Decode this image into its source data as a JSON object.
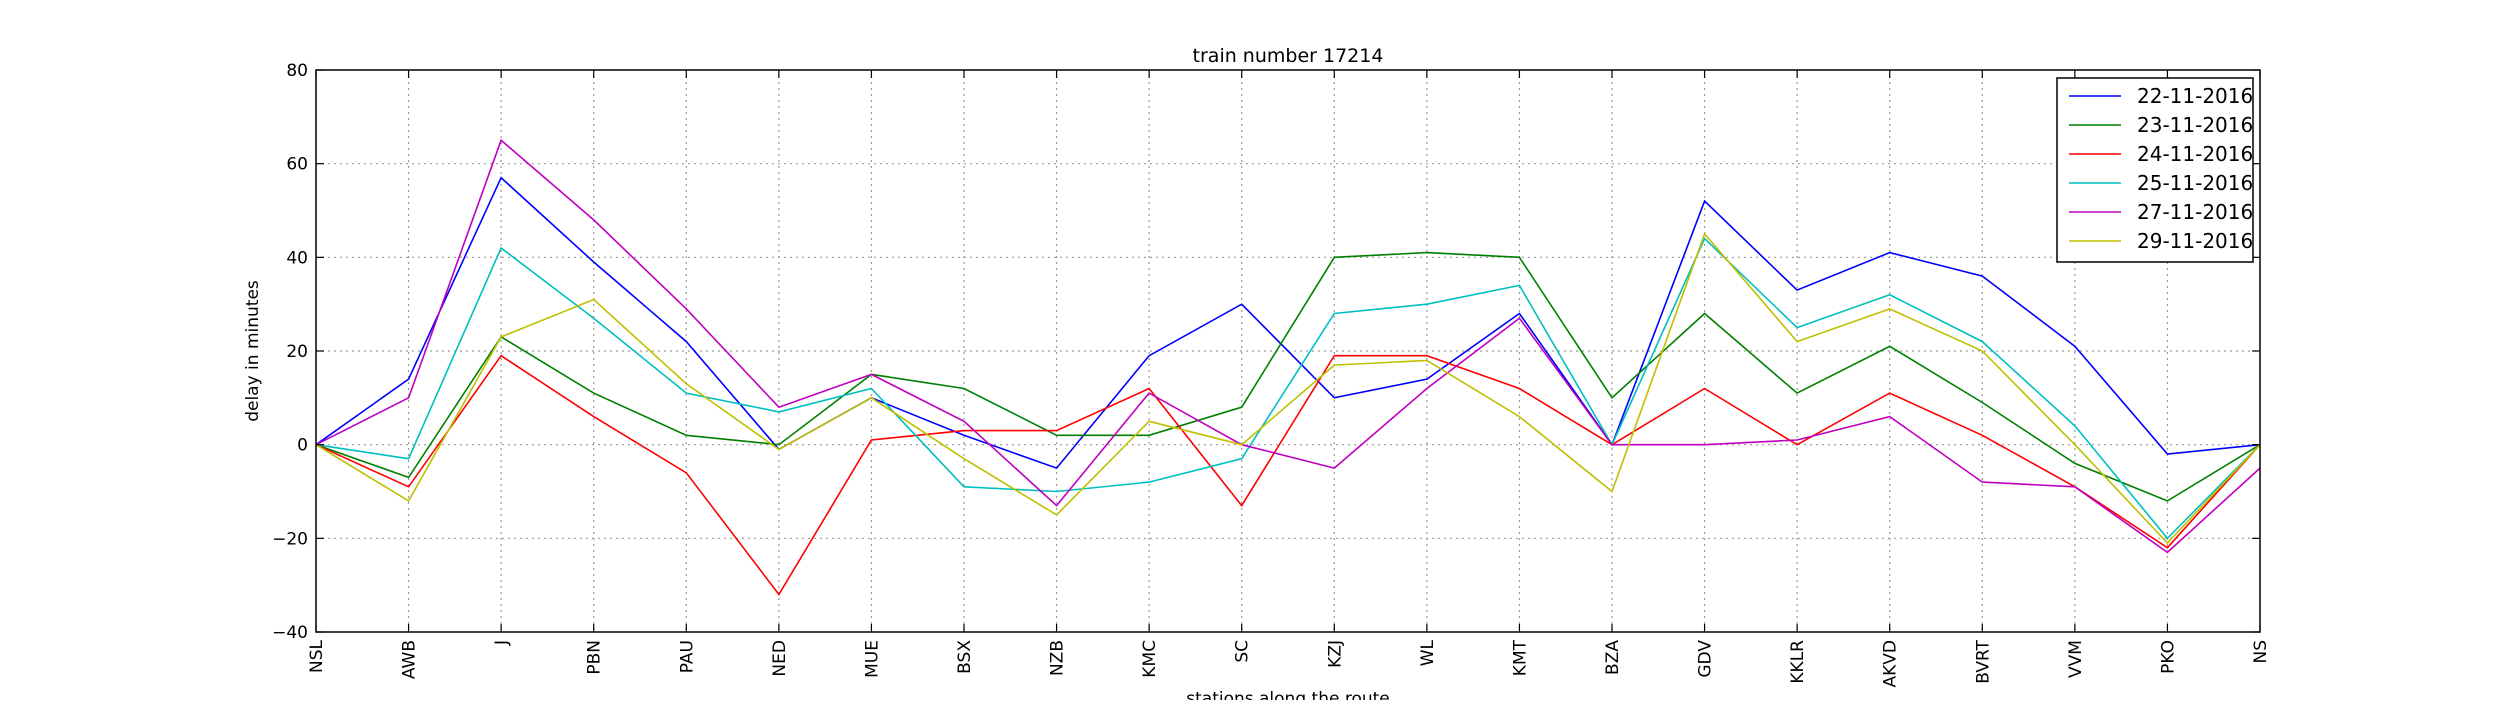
{
  "chart_data": {
    "type": "line",
    "title": "train number 17214",
    "xlabel": "stations along the route",
    "ylabel": "delay in minutes",
    "ylim": [
      -40,
      80
    ],
    "yticks": [
      -40,
      -20,
      0,
      20,
      40,
      60,
      80
    ],
    "ytick_labels": [
      "−40",
      "−20",
      "0",
      "20",
      "40",
      "60",
      "80"
    ],
    "grid": true,
    "legend_position": "top-right",
    "categories": [
      "NSL",
      "AWB",
      "J",
      "PBN",
      "PAU",
      "NED",
      "MUE",
      "BSX",
      "NZB",
      "KMC",
      "SC",
      "KZJ",
      "WL",
      "KMT",
      "BZA",
      "GDV",
      "KKLR",
      "AKVD",
      "BVRT",
      "VVM",
      "PKO",
      "NS"
    ],
    "series": [
      {
        "name": "22-11-2016",
        "color": "#0000ff",
        "values": [
          0,
          14,
          57,
          39,
          22,
          -1,
          10,
          2,
          -5,
          19,
          30,
          10,
          14,
          28,
          0,
          52,
          33,
          41,
          36,
          21,
          -2,
          0
        ]
      },
      {
        "name": "23-11-2016",
        "color": "#008000",
        "values": [
          0,
          -7,
          23,
          11,
          2,
          0,
          15,
          12,
          2,
          2,
          8,
          40,
          41,
          40,
          10,
          28,
          11,
          21,
          9,
          -4,
          -12,
          0
        ]
      },
      {
        "name": "24-11-2016",
        "color": "#ff0000",
        "values": [
          0,
          -9,
          19,
          6,
          -6,
          -32,
          1,
          3,
          3,
          12,
          -13,
          19,
          19,
          12,
          0,
          12,
          0,
          11,
          2,
          -9,
          -22,
          0
        ]
      },
      {
        "name": "25-11-2016",
        "color": "#00bfbf",
        "values": [
          0,
          -3,
          42,
          27,
          11,
          7,
          12,
          -9,
          -10,
          -8,
          -3,
          28,
          30,
          34,
          0,
          44,
          25,
          32,
          22,
          4,
          -20,
          0
        ]
      },
      {
        "name": "27-11-2016",
        "color": "#bf00bf",
        "values": [
          0,
          10,
          65,
          48,
          29,
          8,
          15,
          5,
          -13,
          11,
          0,
          -5,
          12,
          27,
          0,
          0,
          1,
          6,
          -8,
          -9,
          -23,
          -5
        ]
      },
      {
        "name": "29-11-2016",
        "color": "#bfbf00",
        "values": [
          0,
          -12,
          23,
          31,
          13,
          -1,
          10,
          -3,
          -15,
          5,
          0,
          17,
          18,
          6,
          -10,
          45,
          22,
          29,
          20,
          0,
          -21,
          0
        ]
      }
    ]
  }
}
